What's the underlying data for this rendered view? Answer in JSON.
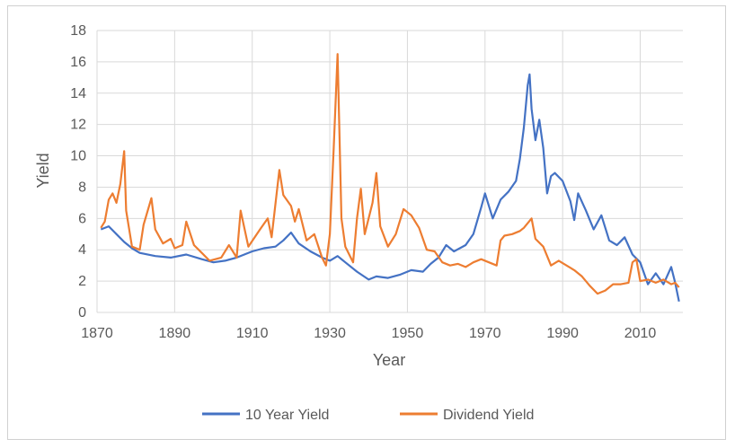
{
  "chart_data": {
    "type": "line",
    "xlabel": "Year",
    "ylabel": "Yield",
    "xlim": [
      1870,
      2021
    ],
    "ylim": [
      0,
      18
    ],
    "x_ticks": [
      1870,
      1890,
      1910,
      1930,
      1950,
      1970,
      1990,
      2010
    ],
    "x_tick_labels": [
      "1870",
      "1890",
      "1910",
      "1930",
      "1950",
      "1970",
      "1990",
      "2010"
    ],
    "y_ticks": [
      0,
      2,
      4,
      6,
      8,
      10,
      12,
      14,
      16,
      18
    ],
    "y_tick_labels": [
      "0",
      "2",
      "4",
      "6",
      "8",
      "10",
      "12",
      "14",
      "16",
      "18"
    ],
    "grid": true,
    "legend_position": "bottom",
    "series": [
      {
        "name": "10 Year Yield",
        "color": "#4472C4",
        "points": [
          [
            1871,
            5.3
          ],
          [
            1873,
            5.5
          ],
          [
            1875,
            5.0
          ],
          [
            1877,
            4.5
          ],
          [
            1879,
            4.1
          ],
          [
            1881,
            3.8
          ],
          [
            1885,
            3.6
          ],
          [
            1889,
            3.5
          ],
          [
            1893,
            3.7
          ],
          [
            1897,
            3.4
          ],
          [
            1900,
            3.2
          ],
          [
            1903,
            3.3
          ],
          [
            1906,
            3.5
          ],
          [
            1910,
            3.9
          ],
          [
            1913,
            4.1
          ],
          [
            1916,
            4.2
          ],
          [
            1918,
            4.6
          ],
          [
            1920,
            5.1
          ],
          [
            1922,
            4.4
          ],
          [
            1925,
            3.9
          ],
          [
            1928,
            3.5
          ],
          [
            1930,
            3.3
          ],
          [
            1932,
            3.6
          ],
          [
            1934,
            3.2
          ],
          [
            1937,
            2.6
          ],
          [
            1940,
            2.1
          ],
          [
            1942,
            2.3
          ],
          [
            1945,
            2.2
          ],
          [
            1948,
            2.4
          ],
          [
            1951,
            2.7
          ],
          [
            1954,
            2.6
          ],
          [
            1956,
            3.1
          ],
          [
            1958,
            3.5
          ],
          [
            1960,
            4.3
          ],
          [
            1962,
            3.9
          ],
          [
            1965,
            4.3
          ],
          [
            1967,
            5.0
          ],
          [
            1969,
            6.7
          ],
          [
            1970,
            7.6
          ],
          [
            1972,
            6.0
          ],
          [
            1974,
            7.2
          ],
          [
            1976,
            7.7
          ],
          [
            1978,
            8.4
          ],
          [
            1979,
            9.8
          ],
          [
            1980,
            11.8
          ],
          [
            1981,
            14.5
          ],
          [
            1981.5,
            15.2
          ],
          [
            1982,
            13.0
          ],
          [
            1983,
            11.0
          ],
          [
            1984,
            12.3
          ],
          [
            1985,
            10.5
          ],
          [
            1986,
            7.6
          ],
          [
            1987,
            8.7
          ],
          [
            1988,
            8.9
          ],
          [
            1990,
            8.4
          ],
          [
            1992,
            7.1
          ],
          [
            1993,
            5.9
          ],
          [
            1994,
            7.6
          ],
          [
            1996,
            6.5
          ],
          [
            1998,
            5.3
          ],
          [
            2000,
            6.2
          ],
          [
            2002,
            4.6
          ],
          [
            2004,
            4.3
          ],
          [
            2006,
            4.8
          ],
          [
            2008,
            3.7
          ],
          [
            2010,
            3.2
          ],
          [
            2012,
            1.8
          ],
          [
            2014,
            2.5
          ],
          [
            2016,
            1.8
          ],
          [
            2018,
            2.9
          ],
          [
            2019,
            1.9
          ],
          [
            2020,
            0.7
          ]
        ]
      },
      {
        "name": "Dividend Yield",
        "color": "#ED7D31",
        "points": [
          [
            1871,
            5.4
          ],
          [
            1872,
            5.8
          ],
          [
            1873,
            7.2
          ],
          [
            1874,
            7.6
          ],
          [
            1875,
            7.0
          ],
          [
            1876,
            8.2
          ],
          [
            1877,
            10.3
          ],
          [
            1877.5,
            6.5
          ],
          [
            1879,
            4.2
          ],
          [
            1881,
            4.0
          ],
          [
            1882,
            5.6
          ],
          [
            1884,
            7.3
          ],
          [
            1885,
            5.3
          ],
          [
            1887,
            4.4
          ],
          [
            1889,
            4.7
          ],
          [
            1890,
            4.1
          ],
          [
            1892,
            4.3
          ],
          [
            1893,
            5.8
          ],
          [
            1895,
            4.3
          ],
          [
            1897,
            3.8
          ],
          [
            1899,
            3.3
          ],
          [
            1902,
            3.5
          ],
          [
            1904,
            4.3
          ],
          [
            1906,
            3.5
          ],
          [
            1907,
            6.5
          ],
          [
            1909,
            4.2
          ],
          [
            1912,
            5.3
          ],
          [
            1914,
            6.0
          ],
          [
            1915,
            4.8
          ],
          [
            1917,
            9.1
          ],
          [
            1918,
            7.5
          ],
          [
            1920,
            6.8
          ],
          [
            1921,
            5.8
          ],
          [
            1922,
            6.6
          ],
          [
            1924,
            4.6
          ],
          [
            1926,
            5.0
          ],
          [
            1928,
            3.5
          ],
          [
            1929,
            3.0
          ],
          [
            1930,
            5.0
          ],
          [
            1931,
            10.5
          ],
          [
            1932,
            16.5
          ],
          [
            1933,
            6.0
          ],
          [
            1934,
            4.2
          ],
          [
            1936,
            3.2
          ],
          [
            1937,
            6.0
          ],
          [
            1938,
            7.9
          ],
          [
            1939,
            5.0
          ],
          [
            1941,
            7.0
          ],
          [
            1942,
            8.9
          ],
          [
            1943,
            5.5
          ],
          [
            1945,
            4.2
          ],
          [
            1947,
            5.0
          ],
          [
            1949,
            6.6
          ],
          [
            1951,
            6.2
          ],
          [
            1953,
            5.4
          ],
          [
            1955,
            4.0
          ],
          [
            1957,
            3.9
          ],
          [
            1959,
            3.2
          ],
          [
            1961,
            3.0
          ],
          [
            1963,
            3.1
          ],
          [
            1965,
            2.9
          ],
          [
            1967,
            3.2
          ],
          [
            1969,
            3.4
          ],
          [
            1971,
            3.2
          ],
          [
            1973,
            3.0
          ],
          [
            1974,
            4.6
          ],
          [
            1975,
            4.9
          ],
          [
            1977,
            5.0
          ],
          [
            1979,
            5.2
          ],
          [
            1980,
            5.4
          ],
          [
            1982,
            6.0
          ],
          [
            1983,
            4.7
          ],
          [
            1985,
            4.2
          ],
          [
            1987,
            3.0
          ],
          [
            1989,
            3.3
          ],
          [
            1991,
            3.0
          ],
          [
            1993,
            2.7
          ],
          [
            1995,
            2.3
          ],
          [
            1997,
            1.7
          ],
          [
            1999,
            1.2
          ],
          [
            2001,
            1.4
          ],
          [
            2003,
            1.8
          ],
          [
            2005,
            1.8
          ],
          [
            2007,
            1.9
          ],
          [
            2008,
            3.2
          ],
          [
            2009,
            3.4
          ],
          [
            2010,
            2.0
          ],
          [
            2012,
            2.1
          ],
          [
            2014,
            1.9
          ],
          [
            2016,
            2.1
          ],
          [
            2018,
            1.8
          ],
          [
            2019,
            1.9
          ],
          [
            2020,
            1.6
          ]
        ]
      }
    ]
  }
}
